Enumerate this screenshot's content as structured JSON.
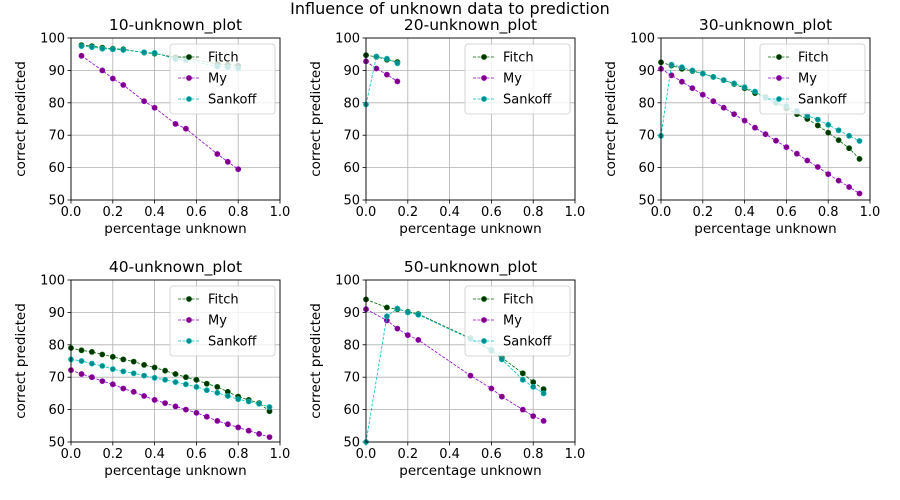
{
  "figure": {
    "suptitle": "Influence of unknown data to prediction"
  },
  "chart_data": [
    {
      "type": "line",
      "title": "10-unknown_plot",
      "xlabel": "percentage unknown",
      "ylabel": "correct predicted",
      "xlim": [
        0.0,
        1.0
      ],
      "ylim": [
        50,
        100
      ],
      "xticks": [
        "0.0",
        "0.2",
        "0.4",
        "0.6",
        "0.8",
        "1.0"
      ],
      "yticks": [
        "50",
        "60",
        "70",
        "80",
        "90",
        "100"
      ],
      "grid": true,
      "legend_position": "upper-right",
      "series": [
        {
          "name": "Fitch",
          "color": "#006400",
          "marker_color": "#003300",
          "points": [
            [
              0.05,
              97.8
            ],
            [
              0.1,
              97.5
            ],
            [
              0.15,
              97.0
            ],
            [
              0.2,
              96.7
            ],
            [
              0.25,
              96.5
            ],
            [
              0.35,
              95.5
            ],
            [
              0.4,
              95.2
            ],
            [
              0.5,
              94.0
            ],
            [
              0.55,
              93.8
            ],
            [
              0.7,
              92.0
            ],
            [
              0.75,
              91.8
            ],
            [
              0.8,
              91.5
            ]
          ]
        },
        {
          "name": "My",
          "color": "#9400d3",
          "marker_color": "#800080",
          "points": [
            [
              0.05,
              94.5
            ],
            [
              0.15,
              90.0
            ],
            [
              0.2,
              87.5
            ],
            [
              0.25,
              85.5
            ],
            [
              0.35,
              80.5
            ],
            [
              0.4,
              78.5
            ],
            [
              0.5,
              73.5
            ],
            [
              0.55,
              72.0
            ],
            [
              0.7,
              64.2
            ],
            [
              0.75,
              61.8
            ],
            [
              0.8,
              59.5
            ]
          ]
        },
        {
          "name": "Sankoff",
          "color": "#00bfbf",
          "marker_color": "#008b8b",
          "points": [
            [
              0.05,
              97.5
            ],
            [
              0.1,
              97.2
            ],
            [
              0.15,
              96.7
            ],
            [
              0.2,
              96.5
            ],
            [
              0.25,
              96.3
            ],
            [
              0.35,
              95.6
            ],
            [
              0.4,
              95.4
            ],
            [
              0.5,
              93.5
            ],
            [
              0.55,
              93.2
            ],
            [
              0.7,
              91.2
            ],
            [
              0.75,
              91.0
            ],
            [
              0.8,
              90.6
            ]
          ]
        }
      ]
    },
    {
      "type": "line",
      "title": "20-unknown_plot",
      "xlabel": "percentage unknown",
      "ylabel": "correct predicted",
      "xlim": [
        0.0,
        1.0
      ],
      "ylim": [
        50,
        100
      ],
      "xticks": [
        "0.0",
        "0.2",
        "0.4",
        "0.6",
        "0.8",
        "1.0"
      ],
      "yticks": [
        "50",
        "60",
        "70",
        "80",
        "90",
        "100"
      ],
      "grid": true,
      "legend_position": "upper-right",
      "series": [
        {
          "name": "Fitch",
          "color": "#006400",
          "marker_color": "#003300",
          "points": [
            [
              0.0,
              94.7
            ],
            [
              0.05,
              94.2
            ],
            [
              0.1,
              93.3
            ],
            [
              0.15,
              92.6
            ]
          ]
        },
        {
          "name": "My",
          "color": "#9400d3",
          "marker_color": "#800080",
          "points": [
            [
              0.0,
              92.8
            ],
            [
              0.05,
              90.6
            ],
            [
              0.1,
              88.7
            ],
            [
              0.15,
              86.6
            ]
          ]
        },
        {
          "name": "Sankoff",
          "color": "#00bfbf",
          "marker_color": "#008b8b",
          "points": [
            [
              0.0,
              79.5
            ],
            [
              0.05,
              94.3
            ],
            [
              0.1,
              93.6
            ],
            [
              0.15,
              92.2
            ]
          ]
        }
      ]
    },
    {
      "type": "line",
      "title": "30-unknown_plot",
      "xlabel": "percentage unknown",
      "ylabel": "correct predicted",
      "xlim": [
        0.0,
        1.0
      ],
      "ylim": [
        50,
        100
      ],
      "xticks": [
        "0.0",
        "0.2",
        "0.4",
        "0.6",
        "0.8",
        "1.0"
      ],
      "yticks": [
        "50",
        "60",
        "70",
        "80",
        "90",
        "100"
      ],
      "grid": true,
      "legend_position": "upper-right",
      "series": [
        {
          "name": "Fitch",
          "color": "#006400",
          "marker_color": "#003300",
          "points": [
            [
              0.0,
              92.5
            ],
            [
              0.05,
              91.5
            ],
            [
              0.1,
              90.5
            ],
            [
              0.15,
              89.8
            ],
            [
              0.2,
              89.0
            ],
            [
              0.25,
              88.0
            ],
            [
              0.3,
              87.0
            ],
            [
              0.35,
              85.8
            ],
            [
              0.4,
              84.5
            ],
            [
              0.45,
              83.0
            ],
            [
              0.5,
              81.8
            ],
            [
              0.55,
              80.0
            ],
            [
              0.6,
              78.3
            ],
            [
              0.65,
              76.5
            ],
            [
              0.7,
              75.0
            ],
            [
              0.75,
              73.0
            ],
            [
              0.8,
              70.8
            ],
            [
              0.85,
              68.5
            ],
            [
              0.9,
              66.0
            ],
            [
              0.95,
              62.7
            ]
          ]
        },
        {
          "name": "My",
          "color": "#9400d3",
          "marker_color": "#800080",
          "points": [
            [
              0.0,
              90.5
            ],
            [
              0.05,
              88.5
            ],
            [
              0.1,
              86.5
            ],
            [
              0.15,
              84.5
            ],
            [
              0.2,
              82.5
            ],
            [
              0.25,
              80.5
            ],
            [
              0.3,
              78.5
            ],
            [
              0.35,
              76.5
            ],
            [
              0.4,
              74.5
            ],
            [
              0.45,
              72.3
            ],
            [
              0.5,
              70.3
            ],
            [
              0.55,
              68.3
            ],
            [
              0.6,
              66.3
            ],
            [
              0.65,
              64.3
            ],
            [
              0.7,
              62.2
            ],
            [
              0.75,
              60.2
            ],
            [
              0.8,
              58.0
            ],
            [
              0.85,
              56.0
            ],
            [
              0.9,
              54.0
            ],
            [
              0.95,
              52.0
            ]
          ]
        },
        {
          "name": "Sankoff",
          "color": "#00bfbf",
          "marker_color": "#008b8b",
          "points": [
            [
              0.0,
              69.8
            ],
            [
              0.05,
              91.8
            ],
            [
              0.1,
              91.0
            ],
            [
              0.15,
              90.0
            ],
            [
              0.2,
              89.0
            ],
            [
              0.25,
              88.0
            ],
            [
              0.3,
              87.0
            ],
            [
              0.35,
              86.0
            ],
            [
              0.4,
              84.8
            ],
            [
              0.45,
              83.5
            ],
            [
              0.5,
              81.5
            ],
            [
              0.55,
              80.0
            ],
            [
              0.6,
              79.0
            ],
            [
              0.65,
              77.5
            ],
            [
              0.7,
              76.0
            ],
            [
              0.75,
              74.8
            ],
            [
              0.8,
              73.2
            ],
            [
              0.85,
              71.5
            ],
            [
              0.9,
              69.8
            ],
            [
              0.95,
              68.2
            ]
          ]
        }
      ]
    },
    {
      "type": "line",
      "title": "40-unknown_plot",
      "xlabel": "percentage unknown",
      "ylabel": "correct predicted",
      "xlim": [
        0.0,
        1.0
      ],
      "ylim": [
        50,
        100
      ],
      "xticks": [
        "0.0",
        "0.2",
        "0.4",
        "0.6",
        "0.8",
        "1.0"
      ],
      "yticks": [
        "50",
        "60",
        "70",
        "80",
        "90",
        "100"
      ],
      "grid": true,
      "legend_position": "upper-right",
      "series": [
        {
          "name": "Fitch",
          "color": "#006400",
          "marker_color": "#003300",
          "points": [
            [
              0.0,
              79.0
            ],
            [
              0.05,
              78.3
            ],
            [
              0.1,
              77.8
            ],
            [
              0.15,
              77.0
            ],
            [
              0.2,
              76.3
            ],
            [
              0.25,
              75.5
            ],
            [
              0.3,
              74.8
            ],
            [
              0.35,
              73.8
            ],
            [
              0.4,
              73.0
            ],
            [
              0.45,
              72.0
            ],
            [
              0.5,
              71.0
            ],
            [
              0.55,
              70.0
            ],
            [
              0.6,
              69.2
            ],
            [
              0.65,
              68.0
            ],
            [
              0.7,
              67.0
            ],
            [
              0.75,
              65.5
            ],
            [
              0.8,
              64.0
            ],
            [
              0.85,
              63.0
            ],
            [
              0.9,
              62.0
            ],
            [
              0.95,
              59.5
            ]
          ]
        },
        {
          "name": "My",
          "color": "#9400d3",
          "marker_color": "#800080",
          "points": [
            [
              0.0,
              72.2
            ],
            [
              0.05,
              71.0
            ],
            [
              0.1,
              70.0
            ],
            [
              0.15,
              68.8
            ],
            [
              0.2,
              67.8
            ],
            [
              0.25,
              66.5
            ],
            [
              0.3,
              65.5
            ],
            [
              0.35,
              64.2
            ],
            [
              0.4,
              63.0
            ],
            [
              0.45,
              62.0
            ],
            [
              0.5,
              61.0
            ],
            [
              0.55,
              60.0
            ],
            [
              0.6,
              59.0
            ],
            [
              0.65,
              57.8
            ],
            [
              0.7,
              56.5
            ],
            [
              0.75,
              55.5
            ],
            [
              0.8,
              54.5
            ],
            [
              0.85,
              53.5
            ],
            [
              0.9,
              52.5
            ],
            [
              0.95,
              51.5
            ]
          ]
        },
        {
          "name": "Sankoff",
          "color": "#00bfbf",
          "marker_color": "#008b8b",
          "points": [
            [
              0.0,
              75.5
            ],
            [
              0.05,
              75.0
            ],
            [
              0.1,
              74.2
            ],
            [
              0.15,
              73.5
            ],
            [
              0.2,
              72.5
            ],
            [
              0.25,
              71.8
            ],
            [
              0.3,
              71.2
            ],
            [
              0.35,
              70.5
            ],
            [
              0.4,
              69.8
            ],
            [
              0.45,
              69.2
            ],
            [
              0.5,
              68.5
            ],
            [
              0.55,
              67.8
            ],
            [
              0.6,
              67.0
            ],
            [
              0.65,
              66.0
            ],
            [
              0.7,
              65.2
            ],
            [
              0.75,
              64.2
            ],
            [
              0.8,
              63.2
            ],
            [
              0.85,
              62.5
            ],
            [
              0.9,
              61.8
            ],
            [
              0.95,
              60.8
            ]
          ]
        }
      ]
    },
    {
      "type": "line",
      "title": "50-unknown_plot",
      "xlabel": "percentage unknown",
      "ylabel": "correct predicted",
      "xlim": [
        0.0,
        1.0
      ],
      "ylim": [
        50,
        100
      ],
      "xticks": [
        "0.0",
        "0.2",
        "0.4",
        "0.6",
        "0.8",
        "1.0"
      ],
      "yticks": [
        "50",
        "60",
        "70",
        "80",
        "90",
        "100"
      ],
      "grid": true,
      "legend_position": "upper-right",
      "series": [
        {
          "name": "Fitch",
          "color": "#006400",
          "marker_color": "#003300",
          "points": [
            [
              0.0,
              94.0
            ],
            [
              0.1,
              91.5
            ],
            [
              0.15,
              91.0
            ],
            [
              0.2,
              90.2
            ],
            [
              0.25,
              89.5
            ],
            [
              0.5,
              82.0
            ],
            [
              0.6,
              78.2
            ],
            [
              0.65,
              76.0
            ],
            [
              0.75,
              71.2
            ],
            [
              0.8,
              68.5
            ],
            [
              0.85,
              66.3
            ]
          ]
        },
        {
          "name": "My",
          "color": "#9400d3",
          "marker_color": "#800080",
          "points": [
            [
              0.0,
              91.0
            ],
            [
              0.1,
              87.5
            ],
            [
              0.15,
              85.0
            ],
            [
              0.2,
              83.0
            ],
            [
              0.25,
              81.5
            ],
            [
              0.5,
              70.5
            ],
            [
              0.6,
              66.5
            ],
            [
              0.65,
              64.0
            ],
            [
              0.75,
              60.0
            ],
            [
              0.8,
              58.0
            ],
            [
              0.85,
              56.5
            ]
          ]
        },
        {
          "name": "Sankoff",
          "color": "#00bfbf",
          "marker_color": "#008b8b",
          "points": [
            [
              0.0,
              50.0
            ],
            [
              0.1,
              88.8
            ],
            [
              0.15,
              91.2
            ],
            [
              0.2,
              90.0
            ],
            [
              0.25,
              89.3
            ],
            [
              0.5,
              81.8
            ],
            [
              0.6,
              78.5
            ],
            [
              0.65,
              75.5
            ],
            [
              0.75,
              69.2
            ],
            [
              0.8,
              67.0
            ],
            [
              0.85,
              65.0
            ]
          ]
        }
      ]
    }
  ]
}
